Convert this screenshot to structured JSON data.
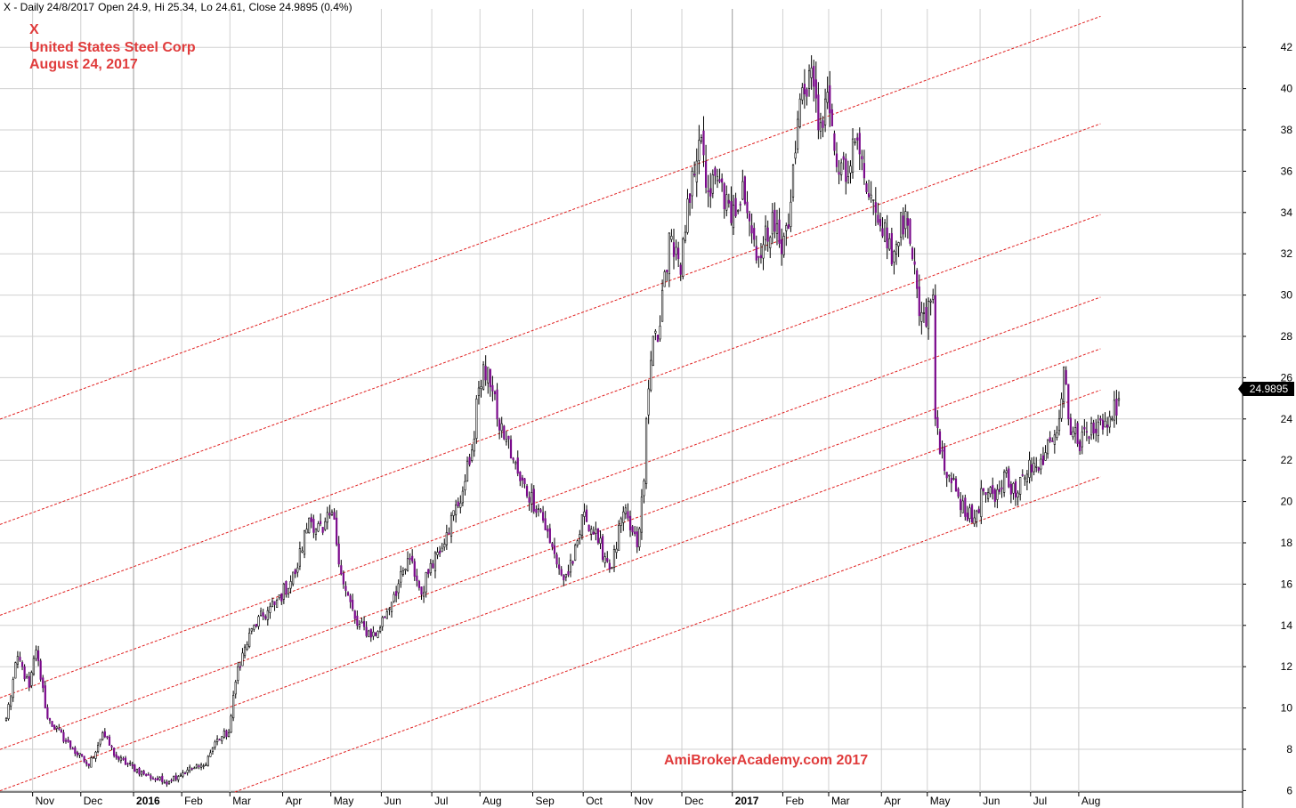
{
  "header": {
    "symbol_line": "X - Daily 24/8/2017",
    "open": "Open 24.9,",
    "high": "Hi 25.34,",
    "low": "Lo 24.61,",
    "close": "Close 24.9895 (0.4%)"
  },
  "title": {
    "ticker": "X",
    "company": "United States Steel Corp",
    "date": "August 24, 2017"
  },
  "watermark": "AmiBrokerAcademy.com  2017",
  "last_price_label": "24.9895",
  "colors": {
    "up": "#ffffff",
    "down": "#7b0b8c",
    "wick": "#000000",
    "channel": "#e02020",
    "grid": "#d0d0d0",
    "text_red": "#e03c3c"
  },
  "chart_data": {
    "type": "candlestick",
    "x_scale": "trading days, 2015-10-15 to 2017-08-24",
    "ylim": [
      5.5,
      43.5
    ],
    "y_ticks": [
      6,
      8,
      10,
      12,
      14,
      16,
      18,
      20,
      22,
      24,
      26,
      28,
      30,
      32,
      34,
      36,
      38,
      40,
      42
    ],
    "x_tick_labels": [
      "Nov",
      "Dec",
      "2016",
      "Feb",
      "Mar",
      "Apr",
      "May",
      "Jun",
      "Jul",
      "Aug",
      "Sep",
      "Oct",
      "Nov",
      "Dec",
      "2017",
      "Feb",
      "Mar",
      "Apr",
      "May",
      "Jun",
      "Jul",
      "Aug"
    ],
    "x_tick_bold": [
      "2016",
      "2017"
    ],
    "close_anchors": [
      [
        "2015-10-15",
        9.5
      ],
      [
        "2015-10-22",
        12.5
      ],
      [
        "2015-10-29",
        11.0
      ],
      [
        "2015-11-03",
        12.8
      ],
      [
        "2015-11-10",
        9.5
      ],
      [
        "2015-11-25",
        8.0
      ],
      [
        "2015-12-04",
        7.2
      ],
      [
        "2015-12-14",
        8.8
      ],
      [
        "2015-12-22",
        7.6
      ],
      [
        "2016-01-07",
        6.8
      ],
      [
        "2016-01-20",
        6.4
      ],
      [
        "2016-02-03",
        7.0
      ],
      [
        "2016-02-12",
        7.2
      ],
      [
        "2016-02-22",
        8.5
      ],
      [
        "2016-02-29",
        8.8
      ],
      [
        "2016-03-04",
        12.0
      ],
      [
        "2016-03-15",
        14.0
      ],
      [
        "2016-03-28",
        15.0
      ],
      [
        "2016-04-08",
        16.5
      ],
      [
        "2016-04-18",
        19.2
      ],
      [
        "2016-04-26",
        18.5
      ],
      [
        "2016-05-02",
        19.5
      ],
      [
        "2016-05-09",
        16.0
      ],
      [
        "2016-05-17",
        14.0
      ],
      [
        "2016-05-27",
        13.5
      ],
      [
        "2016-06-08",
        15.5
      ],
      [
        "2016-06-17",
        17.2
      ],
      [
        "2016-06-24",
        15.5
      ],
      [
        "2016-06-30",
        17.0
      ],
      [
        "2016-07-11",
        18.5
      ],
      [
        "2016-07-20",
        20.5
      ],
      [
        "2016-07-26",
        22.5
      ],
      [
        "2016-07-29",
        25.5
      ],
      [
        "2016-08-04",
        26.5
      ],
      [
        "2016-08-10",
        24.0
      ],
      [
        "2016-08-16",
        23.0
      ],
      [
        "2016-08-24",
        21.0
      ],
      [
        "2016-09-06",
        19.5
      ],
      [
        "2016-09-12",
        18.0
      ],
      [
        "2016-09-20",
        16.2
      ],
      [
        "2016-09-26",
        17.0
      ],
      [
        "2016-10-03",
        19.5
      ],
      [
        "2016-10-11",
        18.0
      ],
      [
        "2016-10-19",
        16.8
      ],
      [
        "2016-10-26",
        19.5
      ],
      [
        "2016-11-03",
        17.8
      ],
      [
        "2016-11-08",
        21.0
      ],
      [
        "2016-11-09",
        24.0
      ],
      [
        "2016-11-14",
        28.0
      ],
      [
        "2016-11-17",
        28.5
      ],
      [
        "2016-11-23",
        33.0
      ],
      [
        "2016-11-30",
        31.0
      ],
      [
        "2016-12-07",
        36.0
      ],
      [
        "2016-12-12",
        37.5
      ],
      [
        "2016-12-16",
        35.0
      ],
      [
        "2016-12-23",
        35.5
      ],
      [
        "2016-12-30",
        33.5
      ],
      [
        "2017-01-06",
        35.5
      ],
      [
        "2017-01-12",
        33.0
      ],
      [
        "2017-01-18",
        31.8
      ],
      [
        "2017-01-25",
        34.0
      ],
      [
        "2017-01-31",
        32.0
      ],
      [
        "2017-02-06",
        34.5
      ],
      [
        "2017-02-10",
        39.5
      ],
      [
        "2017-02-17",
        41.0
      ],
      [
        "2017-02-22",
        38.0
      ],
      [
        "2017-02-27",
        39.5
      ],
      [
        "2017-03-03",
        37.0
      ],
      [
        "2017-03-10",
        35.5
      ],
      [
        "2017-03-17",
        37.5
      ],
      [
        "2017-03-23",
        35.0
      ],
      [
        "2017-03-29",
        34.0
      ],
      [
        "2017-04-04",
        33.5
      ],
      [
        "2017-04-07",
        31.5
      ],
      [
        "2017-04-13",
        34.0
      ],
      [
        "2017-04-19",
        32.5
      ],
      [
        "2017-04-25",
        29.0
      ],
      [
        "2017-04-28",
        28.5
      ],
      [
        "2017-05-03",
        30.0
      ],
      [
        "2017-05-04",
        24.0
      ],
      [
        "2017-05-10",
        21.5
      ],
      [
        "2017-05-17",
        20.5
      ],
      [
        "2017-05-26",
        19.0
      ],
      [
        "2017-06-02",
        20.5
      ],
      [
        "2017-06-09",
        20.0
      ],
      [
        "2017-06-16",
        21.5
      ],
      [
        "2017-06-22",
        20.2
      ],
      [
        "2017-06-30",
        22.0
      ],
      [
        "2017-07-06",
        21.5
      ],
      [
        "2017-07-12",
        23.0
      ],
      [
        "2017-07-19",
        24.0
      ],
      [
        "2017-07-21",
        26.5
      ],
      [
        "2017-07-25",
        24.0
      ],
      [
        "2017-07-31",
        22.8
      ],
      [
        "2017-08-08",
        23.8
      ],
      [
        "2017-08-15",
        23.5
      ],
      [
        "2017-08-24",
        24.9895
      ]
    ],
    "last_bar": {
      "date": "2017-08-24",
      "open": 24.9,
      "high": 25.34,
      "low": 24.61,
      "close": 24.9895
    },
    "channel_lines": [
      {
        "from": [
          "2015-10-15",
          24.1
        ],
        "to": [
          "2017-08-14",
          43.5
        ]
      },
      {
        "from": [
          "2015-10-15",
          19.0
        ],
        "to": [
          "2017-08-14",
          38.3
        ]
      },
      {
        "from": [
          "2015-10-15",
          14.6
        ],
        "to": [
          "2017-08-14",
          33.9
        ]
      },
      {
        "from": [
          "2015-10-15",
          10.6
        ],
        "to": [
          "2017-08-14",
          29.9
        ]
      },
      {
        "from": [
          "2015-10-15",
          8.1
        ],
        "to": [
          "2017-08-14",
          27.4
        ]
      },
      {
        "from": [
          "2015-10-15",
          6.1
        ],
        "to": [
          "2017-08-14",
          25.4
        ]
      },
      {
        "from": [
          "2015-10-15",
          1.9
        ],
        "to": [
          "2017-08-14",
          21.2
        ]
      }
    ]
  }
}
